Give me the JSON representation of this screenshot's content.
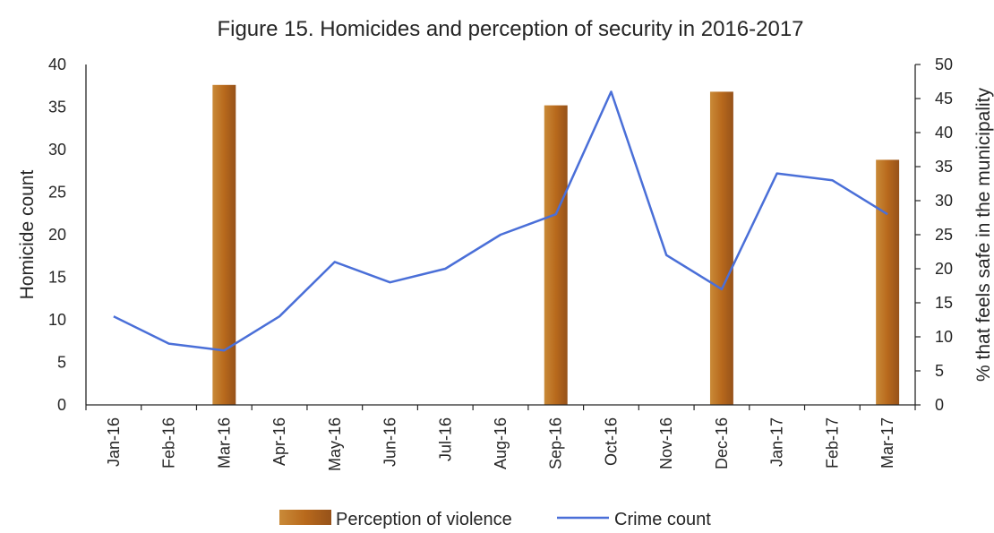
{
  "chart_data": {
    "type": "bar+line",
    "title": "Figure 15. Homicides and perception of security in 2016-2017",
    "categories": [
      "Jan-16",
      "Feb-16",
      "Mar-16",
      "Apr-16",
      "May-16",
      "Jun-16",
      "Jul-16",
      "Aug-16",
      "Sep-16",
      "Oct-16",
      "Nov-16",
      "Dec-16",
      "Jan-17",
      "Feb-17",
      "Mar-17"
    ],
    "left_axis": {
      "label": "Homicide count",
      "min": 0,
      "max": 40,
      "ticks": [
        0,
        5,
        10,
        15,
        20,
        25,
        30,
        35,
        40
      ]
    },
    "right_axis": {
      "label": "% that feels safe in the municipality",
      "min": 0,
      "max": 50,
      "ticks": [
        0,
        5,
        10,
        15,
        20,
        25,
        30,
        35,
        40,
        45,
        50
      ]
    },
    "series": [
      {
        "name": "Perception of violence",
        "kind": "bar",
        "axis": "right",
        "color": "#b8691c",
        "values": [
          null,
          null,
          47,
          null,
          null,
          null,
          null,
          null,
          44,
          null,
          null,
          46,
          null,
          null,
          36
        ]
      },
      {
        "name": "Crime count",
        "kind": "line",
        "axis": "left",
        "color": "#4a6fd8",
        "values": [
          10.4,
          7.2,
          6.4,
          10.4,
          16.8,
          14.4,
          16,
          20,
          22.4,
          36.8,
          17.6,
          13.6,
          27.2,
          26.4,
          22.4
        ]
      }
    ],
    "grid": false,
    "legend_position": "bottom"
  }
}
